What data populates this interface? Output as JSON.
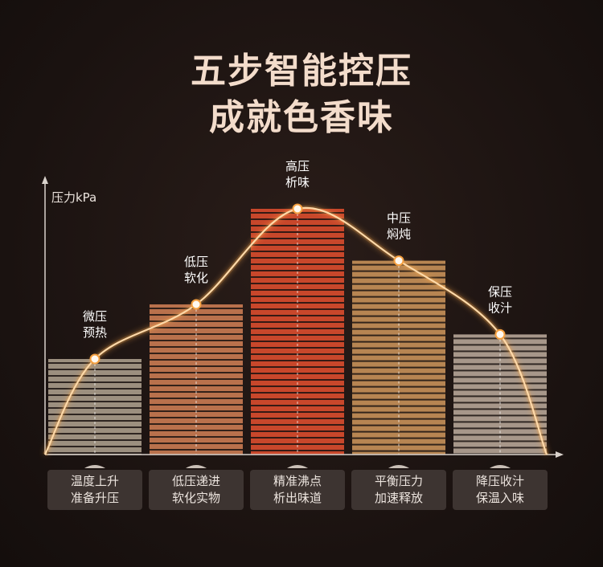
{
  "header": {
    "title_line1": "五步智能控压",
    "title_line2": "成就色香味"
  },
  "chart_data": {
    "type": "bar",
    "ylabel": "压力kPa",
    "categories": [
      "微压\n预热",
      "低压\n软化",
      "高压\n析味",
      "中压\n焖炖",
      "保压\n收汁"
    ],
    "values": [
      35,
      55,
      90,
      71,
      44
    ],
    "ylim": [
      0,
      100
    ],
    "bar_colors": [
      "#9c8f7f",
      "#b9714c",
      "#c8472b",
      "#b78552",
      "#a7978a"
    ],
    "curve_color": "#f8a84c",
    "grid": false
  },
  "stages": [
    {
      "line1": "温度上升",
      "line2": "准备升压"
    },
    {
      "line1": "低压递进",
      "line2": "软化实物"
    },
    {
      "line1": "精准沸点",
      "line2": "析出味道"
    },
    {
      "line1": "平衡压力",
      "line2": "加速释放"
    },
    {
      "line1": "降压收汁",
      "line2": "保温入味"
    }
  ]
}
